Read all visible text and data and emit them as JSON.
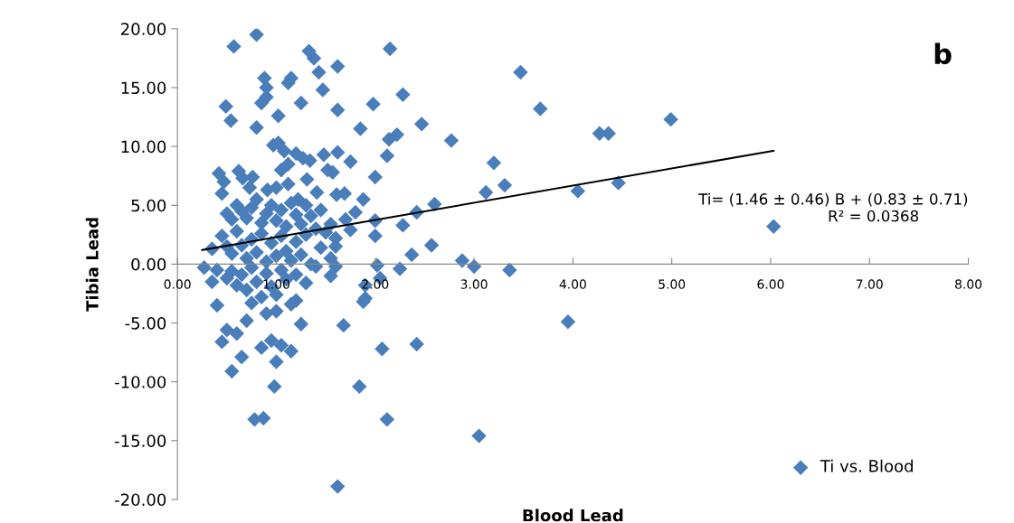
{
  "chart_data": {
    "type": "scatter",
    "xlabel": "Blood Lead",
    "ylabel": "Tibia Lead",
    "xlim": [
      0,
      8
    ],
    "ylim": [
      -20,
      20
    ],
    "xticks": [
      {
        "value": 0,
        "label": "0.00"
      },
      {
        "value": 1,
        "label": "1.00"
      },
      {
        "value": 2,
        "label": "2.00"
      },
      {
        "value": 3,
        "label": "3.00"
      },
      {
        "value": 4,
        "label": "4.00"
      },
      {
        "value": 5,
        "label": "5.00"
      },
      {
        "value": 6,
        "label": "6.00"
      },
      {
        "value": 7,
        "label": "7.00"
      },
      {
        "value": 8,
        "label": "8.00"
      }
    ],
    "yticks": [
      {
        "value": -20,
        "label": "-20.00"
      },
      {
        "value": -15,
        "label": "-15.00"
      },
      {
        "value": -10,
        "label": "-10.00"
      },
      {
        "value": -5,
        "label": "-5.00"
      },
      {
        "value": 0,
        "label": "0.00"
      },
      {
        "value": 5,
        "label": "5.00"
      },
      {
        "value": 10,
        "label": "10.00"
      },
      {
        "value": 15,
        "label": "15.00"
      },
      {
        "value": 20,
        "label": "20.00"
      }
    ],
    "grid": false,
    "legend": "bottom right",
    "annotations": [
      "b",
      "Ti= (1.46 ± 0.46) B + (0.83 ± 0.71)",
      "R² = 0.0368"
    ],
    "series": [
      {
        "name": "Ti vs. Blood",
        "color": "#4a7ebb",
        "marker": "diamond",
        "x": [
          0.57,
          0.8,
          1.33,
          1.38,
          1.43,
          1.62,
          2.15,
          0.88,
          0.9,
          1.15,
          1.12,
          1.47,
          0.85,
          0.9,
          1.25,
          1.62,
          1.02,
          0.49,
          0.54,
          0.8,
          1.85,
          1.98,
          2.28,
          2.47,
          2.14,
          2.22,
          2.77,
          3.47,
          3.67,
          4.27,
          4.36,
          4.99,
          0.97,
          1.02,
          1.08,
          1.2,
          1.27,
          1.34,
          1.48,
          1.62,
          1.75,
          2.12,
          1.12,
          1.05,
          1.52,
          1.57,
          1.31,
          0.76,
          0.42,
          0.47,
          0.62,
          0.66,
          0.73,
          0.91,
          1.0,
          1.12,
          1.22,
          1.41,
          1.69,
          1.61,
          1.88,
          2.0,
          3.2,
          3.31,
          3.12,
          4.05,
          4.46,
          2.6,
          2.42,
          2.28,
          2.57,
          2.37,
          2.0,
          2.0,
          2.02,
          2.25,
          2.88,
          3.0,
          3.36,
          6.03,
          0.45,
          0.5,
          0.55,
          0.6,
          0.65,
          0.7,
          0.75,
          0.8,
          0.85,
          0.9,
          0.95,
          1.0,
          1.05,
          1.1,
          1.15,
          1.2,
          1.25,
          1.3,
          1.35,
          1.4,
          1.45,
          1.5,
          1.55,
          1.6,
          1.7,
          1.75,
          1.8,
          0.45,
          0.5,
          0.55,
          0.6,
          0.65,
          0.7,
          0.75,
          0.8,
          0.85,
          0.9,
          0.95,
          1.0,
          1.05,
          1.1,
          1.15,
          1.2,
          1.25,
          1.3,
          1.35,
          1.45,
          1.55,
          1.6,
          0.27,
          0.35,
          0.4,
          0.5,
          0.55,
          0.6,
          0.65,
          0.7,
          0.75,
          0.8,
          0.85,
          0.9,
          0.95,
          1.0,
          1.05,
          1.1,
          1.15,
          1.2,
          1.3,
          1.4,
          1.55,
          1.6,
          1.9,
          2.05,
          0.35,
          0.4,
          0.45,
          0.55,
          0.6,
          0.65,
          0.7,
          0.78,
          0.87,
          0.85,
          0.95,
          0.98,
          1.0,
          1.05,
          0.9,
          1.0,
          1.15,
          1.25,
          1.2,
          1.68,
          1.84,
          1.88,
          2.07,
          2.12,
          2.42,
          3.05,
          1.62,
          3.95,
          0.5,
          0.75,
          1.9
        ],
        "values": [
          18.5,
          19.5,
          18.1,
          17.5,
          16.3,
          16.8,
          18.3,
          15.8,
          15.0,
          15.8,
          15.4,
          14.8,
          13.7,
          14.2,
          13.7,
          13.1,
          12.6,
          13.4,
          12.2,
          11.6,
          11.5,
          13.6,
          14.4,
          11.9,
          10.6,
          11.0,
          10.5,
          16.3,
          13.2,
          11.1,
          11.1,
          12.3,
          10.1,
          10.3,
          9.6,
          9.4,
          9.0,
          8.8,
          9.3,
          9.5,
          8.7,
          9.2,
          8.5,
          8.0,
          8.0,
          7.8,
          7.2,
          7.4,
          7.7,
          7.0,
          7.9,
          7.3,
          6.5,
          6.3,
          6.5,
          6.8,
          5.5,
          6.1,
          6.0,
          5.9,
          5.5,
          7.4,
          8.6,
          6.7,
          6.1,
          6.2,
          6.9,
          5.1,
          4.4,
          3.3,
          1.6,
          0.8,
          3.7,
          2.4,
          -0.1,
          -0.4,
          0.3,
          -0.2,
          -0.5,
          3.2,
          6.0,
          4.3,
          3.8,
          5.0,
          4.5,
          3.9,
          4.8,
          5.5,
          3.5,
          4.3,
          5.0,
          3.7,
          4.6,
          3.2,
          5.2,
          4.2,
          3.4,
          5.0,
          4.1,
          3.0,
          4.6,
          2.7,
          3.4,
          2.2,
          3.8,
          2.9,
          4.4,
          2.4,
          1.5,
          0.9,
          2.8,
          1.6,
          0.5,
          2.1,
          1.0,
          2.6,
          0.2,
          1.8,
          0.7,
          2.4,
          1.1,
          0.3,
          1.9,
          0.8,
          2.5,
          0.0,
          1.4,
          0.5,
          1.5,
          -0.3,
          1.3,
          -0.5,
          -1.2,
          -0.6,
          -1.8,
          -0.9,
          -2.2,
          -0.3,
          -1.5,
          -2.8,
          -0.8,
          -1.9,
          -2.6,
          -0.5,
          -1.3,
          -3.4,
          -0.9,
          -1.6,
          -0.2,
          -1.0,
          -0.2,
          -1.8,
          -1.2,
          -1.5,
          -3.5,
          -6.6,
          -9.1,
          -5.9,
          -7.9,
          -4.8,
          -13.2,
          -13.1,
          -7.1,
          -6.5,
          -10.4,
          -8.3,
          -6.9,
          -4.2,
          -4.0,
          -7.4,
          -5.1,
          -3.1,
          -5.2,
          -10.4,
          -3.2,
          -7.2,
          -13.2,
          -6.8,
          -14.6,
          -18.9,
          -4.9,
          -5.6,
          -3.3,
          -2.9
        ]
      },
      {
        "type": "line",
        "color": "#000000",
        "marker": "none",
        "x": [
          0.25,
          6.03
        ],
        "values": [
          1.2,
          9.63
        ]
      }
    ]
  }
}
